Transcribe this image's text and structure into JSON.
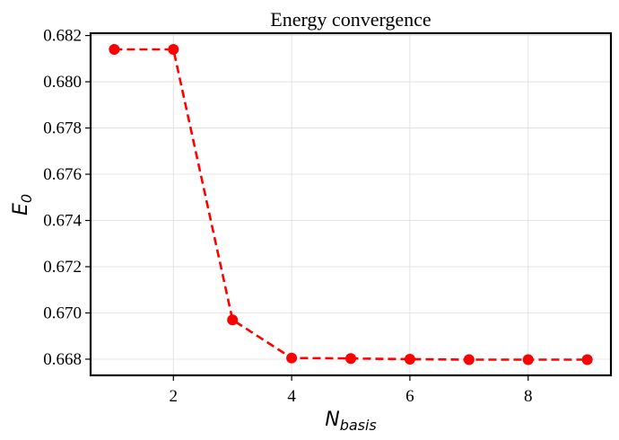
{
  "chart_data": {
    "type": "line",
    "title": "Energy convergence",
    "xlabel": {
      "base": "N",
      "sub": "basis"
    },
    "ylabel": {
      "base": "E",
      "sub": "0"
    },
    "xlim": [
      0.6,
      9.4
    ],
    "ylim": [
      0.6673,
      0.6821
    ],
    "xticks": [
      2,
      4,
      6,
      8
    ],
    "yticks": [
      0.668,
      0.67,
      0.672,
      0.674,
      0.676,
      0.678,
      0.68,
      0.682
    ],
    "grid": true,
    "legend": "none",
    "series": [
      {
        "color": "#ff0000",
        "line_style": "dashed",
        "marker": "circle",
        "x": [
          1,
          2,
          3,
          4,
          5,
          6,
          7,
          8,
          9
        ],
        "y": [
          0.6814,
          0.6814,
          0.6697,
          0.66805,
          0.66803,
          0.668,
          0.66798,
          0.66798,
          0.66798
        ]
      }
    ]
  }
}
